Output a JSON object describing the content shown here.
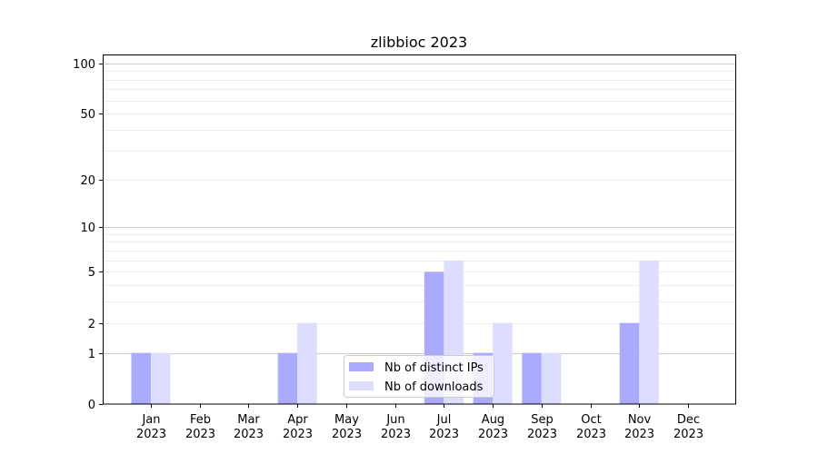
{
  "chart_data": {
    "type": "bar",
    "title": "zlibbioc 2023",
    "xlabel": "",
    "ylabel": "",
    "yscale": "symlog (log10(1+y))",
    "ylim": [
      0,
      113
    ],
    "yticks": [
      0,
      1,
      2,
      5,
      10,
      20,
      50,
      100
    ],
    "grid": true,
    "legend_position": "lower-center",
    "categories": [
      "Jan\n2023",
      "Feb\n2023",
      "Mar\n2023",
      "Apr\n2023",
      "May\n2023",
      "Jun\n2023",
      "Jul\n2023",
      "Aug\n2023",
      "Sep\n2023",
      "Oct\n2023",
      "Nov\n2023",
      "Dec\n2023"
    ],
    "series": [
      {
        "name": "Nb of distinct IPs",
        "color": "#aaaaff",
        "values": [
          1,
          0,
          0,
          1,
          0,
          0,
          5,
          1,
          1,
          0,
          2,
          0
        ]
      },
      {
        "name": "Nb of downloads",
        "color": "#ddddff",
        "values": [
          1,
          0,
          0,
          2,
          0,
          0,
          6,
          2,
          1,
          0,
          6,
          0
        ]
      }
    ]
  }
}
